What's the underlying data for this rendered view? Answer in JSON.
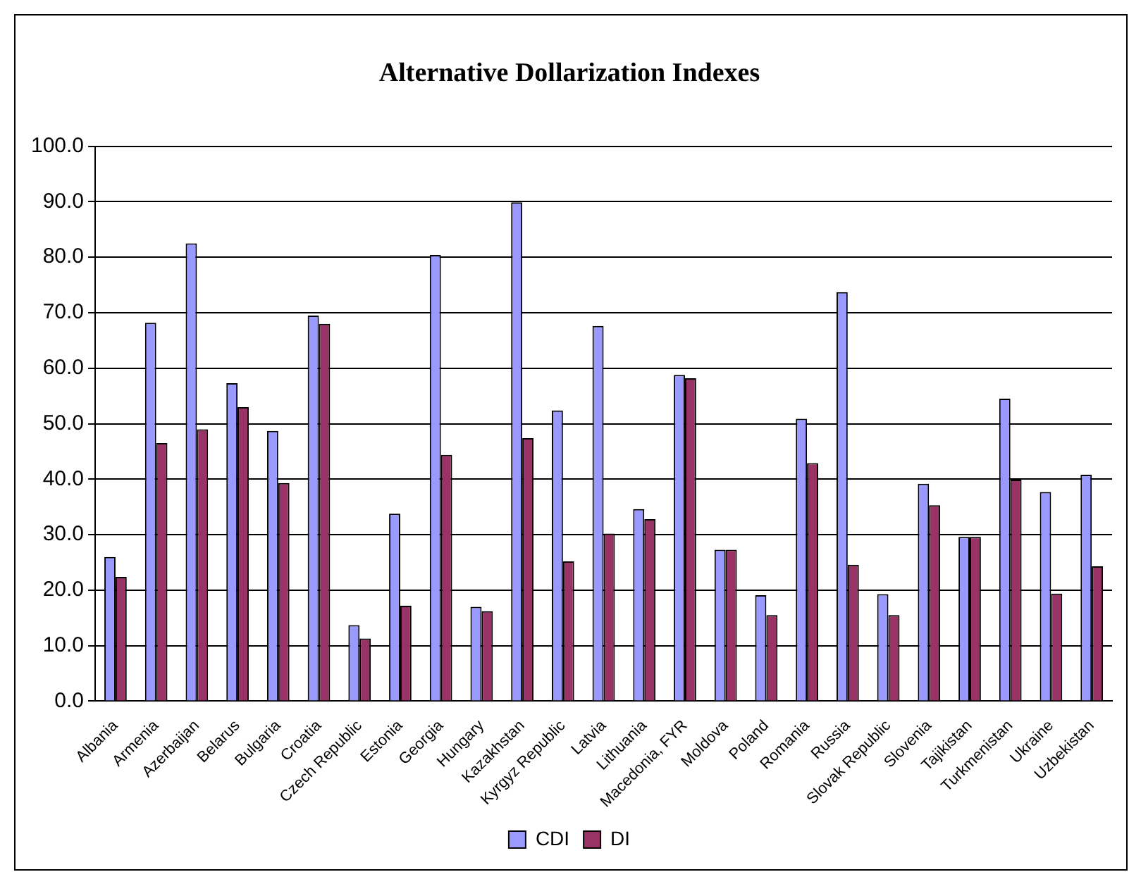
{
  "chart_data": {
    "type": "bar",
    "title": "Alternative Dollarization Indexes",
    "categories": [
      "Albania",
      "Armenia",
      "Azerbaijan",
      "Belarus",
      "Bulgaria",
      "Croatia",
      "Czech Republic",
      "Estonia",
      "Georgia",
      "Hungary",
      "Kazakhstan",
      "Kyrgyz Republic",
      "Latvia",
      "Lithuania",
      "Macedonia, FYR",
      "Moldova",
      "Poland",
      "Romania",
      "Russia",
      "Slovak Republic",
      "Slovenia",
      "Tajikistan",
      "Turkmenistan",
      "Ukraine",
      "Uzbekistan"
    ],
    "series": [
      {
        "name": "CDI",
        "color": "#9999ff",
        "values": [
          26.0,
          68.2,
          82.5,
          57.3,
          48.7,
          69.5,
          13.7,
          33.8,
          80.4,
          17.0,
          89.9,
          52.4,
          67.6,
          34.6,
          58.8,
          27.3,
          19.1,
          50.9,
          73.7,
          19.3,
          39.2,
          29.6,
          54.5,
          37.7,
          40.8
        ]
      },
      {
        "name": "DI",
        "color": "#993366",
        "values": [
          22.4,
          46.5,
          49.0,
          53.0,
          39.3,
          68.0,
          11.3,
          17.2,
          44.4,
          16.2,
          47.4,
          25.2,
          30.2,
          32.8,
          58.2,
          27.3,
          15.5,
          42.9,
          24.6,
          15.5,
          35.3,
          29.6,
          39.9,
          19.4,
          24.3
        ]
      }
    ],
    "ylim": [
      0,
      100
    ],
    "yticks": [
      {
        "value": 0,
        "label": "0.0"
      },
      {
        "value": 10,
        "label": "10.0"
      },
      {
        "value": 20,
        "label": "20.0"
      },
      {
        "value": 30,
        "label": "30.0"
      },
      {
        "value": 40,
        "label": "40.0"
      },
      {
        "value": 50,
        "label": "50.0"
      },
      {
        "value": 60,
        "label": "60.0"
      },
      {
        "value": 70,
        "label": "70.0"
      },
      {
        "value": 80,
        "label": "80.0"
      },
      {
        "value": 90,
        "label": "90.0"
      },
      {
        "value": 100,
        "label": "100.0"
      }
    ],
    "grid": "y",
    "legend": "bottom"
  }
}
